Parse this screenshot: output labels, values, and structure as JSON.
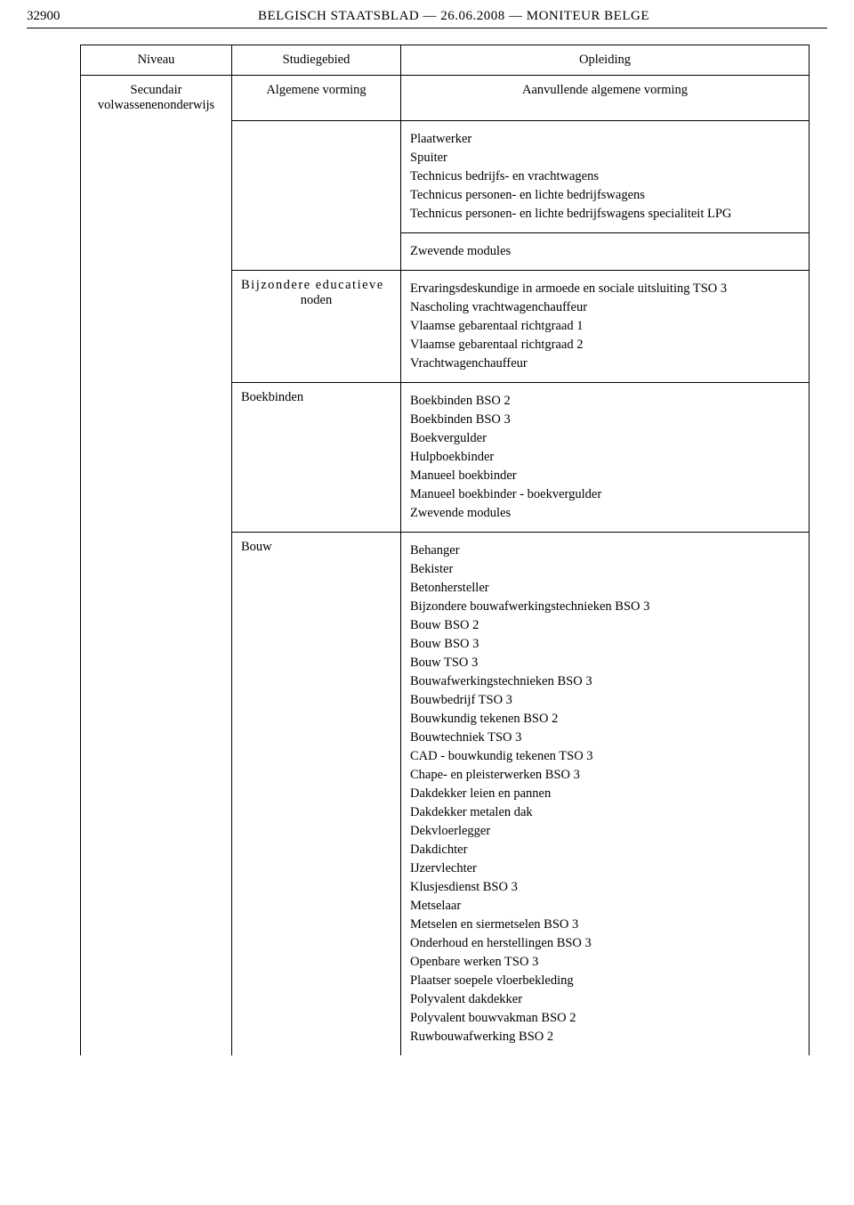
{
  "header": {
    "page_number": "32900",
    "title": "BELGISCH STAATSBLAD — 26.06.2008 — MONITEUR BELGE"
  },
  "table": {
    "head": {
      "niveau": "Niveau",
      "studiegebied": "Studiegebied",
      "opleiding": "Opleiding"
    },
    "row_secundair": {
      "col1a": "Secundair",
      "col1b": "volwassenenonderwijs",
      "col2": "Algemene vorming",
      "col3": "Aanvullende algemene vorming"
    },
    "row_plaatwerker": {
      "items": [
        "Plaatwerker",
        "Spuiter",
        "Technicus bedrijfs- en vrachtwagens",
        "Technicus personen- en lichte bedrijfswagens",
        "Technicus personen- en lichte bedrijfswagens specialiteit LPG"
      ]
    },
    "row_zwevende1": {
      "text": "Zwevende modules"
    },
    "row_bijzondere": {
      "col2a": "Bijzondere educatieve",
      "col2b": "noden",
      "items": [
        "Ervaringsdeskundige in armoede en sociale uitsluiting TSO 3",
        "Nascholing vrachtwagenchauffeur",
        "Vlaamse gebarentaal richtgraad 1",
        "Vlaamse gebarentaal richtgraad 2",
        "Vrachtwagenchauffeur"
      ]
    },
    "row_boekbinden": {
      "col2": "Boekbinden",
      "items": [
        "Boekbinden BSO 2",
        "Boekbinden BSO 3",
        "Boekvergulder",
        "Hulpboekbinder",
        "Manueel boekbinder",
        "Manueel boekbinder - boekvergulder",
        "Zwevende modules"
      ]
    },
    "row_bouw": {
      "col2": "Bouw",
      "items": [
        "Behanger",
        "Bekister",
        "Betonhersteller",
        "Bijzondere bouwafwerkingstechnieken BSO 3",
        "Bouw BSO 2",
        "Bouw BSO 3",
        "Bouw TSO 3",
        "Bouwafwerkingstechnieken BSO 3",
        "Bouwbedrijf TSO 3",
        "Bouwkundig tekenen BSO 2",
        "Bouwtechniek TSO 3",
        "CAD - bouwkundig tekenen TSO 3",
        "Chape- en pleisterwerken BSO 3",
        "Dakdekker leien en pannen",
        "Dakdekker metalen dak",
        "Dekvloerlegger",
        "Dakdichter",
        "IJzervlechter",
        "Klusjesdienst BSO 3",
        "Metselaar",
        "Metselen en siermetselen BSO 3",
        "Onderhoud en herstellingen BSO 3",
        "Openbare werken TSO 3",
        "Plaatser soepele vloerbekleding",
        "Polyvalent dakdekker",
        "Polyvalent bouwvakman BSO 2",
        "Ruwbouwafwerking BSO 2"
      ]
    }
  }
}
